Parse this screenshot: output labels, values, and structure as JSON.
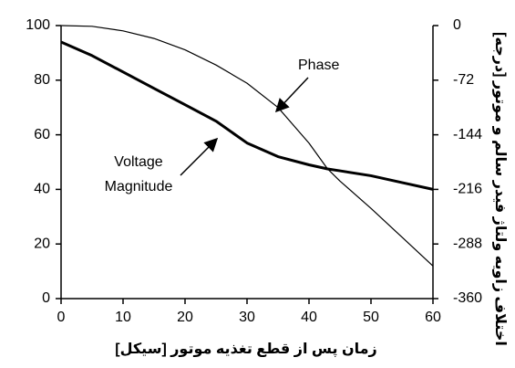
{
  "chart_data": {
    "type": "line",
    "x": [
      0,
      5,
      10,
      15,
      20,
      25,
      30,
      35,
      40,
      43,
      45,
      50,
      55,
      60
    ],
    "series": [
      {
        "color": "#000000",
        "axis": "y",
        "values": [
          94,
          89,
          83,
          77,
          71,
          65,
          57,
          52,
          49,
          47.5,
          46.8,
          45,
          42.5,
          40
        ]
      },
      {
        "color": "#000000",
        "axis": "y2",
        "values": [
          0,
          -1,
          -7,
          -17,
          -32,
          -52,
          -76,
          -108,
          -155,
          -189,
          -205,
          -241,
          -279,
          -317
        ]
      }
    ],
    "xlim": [
      0,
      60
    ],
    "xticks": [
      0,
      10,
      20,
      30,
      40,
      50,
      60
    ],
    "ylim": [
      0,
      100
    ],
    "yticks": [
      0,
      20,
      40,
      60,
      80,
      100
    ],
    "y2lim": [
      -360,
      0
    ],
    "y2ticks": [
      0,
      -72,
      -144,
      -216,
      -288,
      -360
    ],
    "xlabel": "زمان پس از قطع تغذیه موتور [سیکل]",
    "y2label": "اختلاف زاویه ولتاژ فیدر سالم و موتور [درجه]",
    "annotations": [
      {
        "lines": [
          "Phase"
        ]
      },
      {
        "lines": [
          "Voltage",
          "Magnitude"
        ]
      }
    ]
  }
}
